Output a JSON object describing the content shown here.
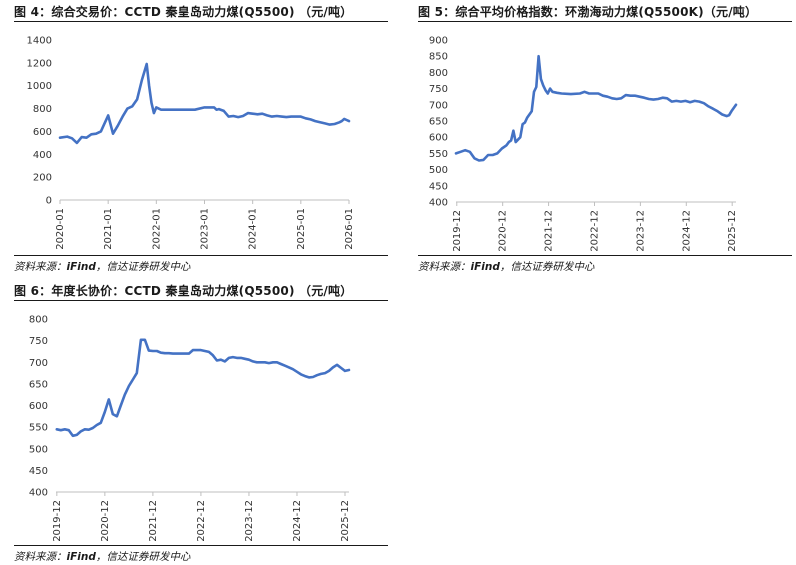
{
  "source": {
    "prefix": "资料来源：",
    "brand": "iFind",
    "suffix": "，信达证券研发中心"
  },
  "charts": [
    {
      "label": "图 4：综合交易价：CCTD 秦皇岛动力煤(Q5500)  （元/吨）",
      "color": "#4472C4",
      "chart_data": {
        "type": "line",
        "title": "图 4：综合交易价：CCTD 秦皇岛动力煤(Q5500)  （元/吨）",
        "xlabel": "",
        "ylabel": "",
        "ylim": [
          0,
          1400
        ],
        "yticks": [
          0,
          200,
          400,
          600,
          800,
          1000,
          1200,
          1400
        ],
        "xlim": [
          2020.0,
          2026.0
        ],
        "xticks": [
          {
            "x": 2020.0,
            "label": "2020-01"
          },
          {
            "x": 2021.0,
            "label": "2021-01"
          },
          {
            "x": 2022.0,
            "label": "2022-01"
          },
          {
            "x": 2023.0,
            "label": "2023-01"
          },
          {
            "x": 2024.0,
            "label": "2024-01"
          },
          {
            "x": 2025.0,
            "label": "2025-01"
          },
          {
            "x": 2026.0,
            "label": "2026-01"
          }
        ],
        "grid": false,
        "legend": "none",
        "series": [
          {
            "x": [
              2020.0,
              2020.15,
              2020.25,
              2020.35,
              2020.45,
              2020.55,
              2020.65,
              2020.75,
              2020.85,
              2021.0,
              2021.1,
              2021.2,
              2021.3,
              2021.4,
              2021.5,
              2021.6,
              2021.7,
              2021.75,
              2021.8,
              2021.85,
              2021.9,
              2021.95,
              2022.0,
              2022.05,
              2022.1,
              2022.2,
              2022.4,
              2022.6,
              2022.8,
              2023.0,
              2023.1,
              2023.2,
              2023.25,
              2023.3,
              2023.4,
              2023.5,
              2023.6,
              2023.7,
              2023.8,
              2023.9,
              2024.0,
              2024.1,
              2024.2,
              2024.3,
              2024.4,
              2024.5,
              2024.6,
              2024.7,
              2024.8,
              2024.9,
              2025.0,
              2025.1,
              2025.2,
              2025.3,
              2025.4,
              2025.5,
              2025.6,
              2025.7,
              2025.8,
              2025.85,
              2025.9,
              2025.95,
              2026.0
            ],
            "y": [
              545,
              555,
              540,
              500,
              550,
              545,
              575,
              580,
              600,
              740,
              580,
              650,
              730,
              800,
              820,
              880,
              1050,
              1120,
              1190,
              1000,
              850,
              760,
              810,
              800,
              790,
              790,
              790,
              790,
              790,
              810,
              810,
              810,
              790,
              795,
              780,
              730,
              735,
              725,
              735,
              760,
              755,
              750,
              755,
              740,
              730,
              735,
              730,
              725,
              730,
              730,
              730,
              715,
              705,
              690,
              680,
              670,
              660,
              665,
              680,
              690,
              710,
              700,
              690
            ]
          }
        ]
      }
    },
    {
      "label": "图 5：综合平均价格指数：环渤海动力煤(Q5500K)（元/吨）",
      "color": "#4472C4",
      "chart_data": {
        "type": "line",
        "title": "图 5：综合平均价格指数：环渤海动力煤(Q5500K)（元/吨）",
        "xlabel": "",
        "ylabel": "",
        "ylim": [
          400,
          900
        ],
        "yticks": [
          400,
          450,
          500,
          550,
          600,
          650,
          700,
          750,
          800,
          850,
          900
        ],
        "xlim": [
          2019.9,
          2026.0
        ],
        "xticks": [
          {
            "x": 2019.917,
            "label": "2019-12"
          },
          {
            "x": 2020.917,
            "label": "2020-12"
          },
          {
            "x": 2021.917,
            "label": "2021-12"
          },
          {
            "x": 2022.917,
            "label": "2022-12"
          },
          {
            "x": 2023.917,
            "label": "2023-12"
          },
          {
            "x": 2024.917,
            "label": "2024-12"
          },
          {
            "x": 2025.917,
            "label": "2025-12"
          }
        ],
        "grid": false,
        "legend": "none",
        "series": [
          {
            "x": [
              2019.9,
              2020.0,
              2020.1,
              2020.2,
              2020.3,
              2020.4,
              2020.5,
              2020.6,
              2020.7,
              2020.8,
              2020.9,
              2021.0,
              2021.05,
              2021.1,
              2021.15,
              2021.2,
              2021.3,
              2021.35,
              2021.4,
              2021.45,
              2021.5,
              2021.55,
              2021.6,
              2021.65,
              2021.7,
              2021.75,
              2021.8,
              2021.85,
              2021.9,
              2021.95,
              2022.0,
              2022.1,
              2022.2,
              2022.4,
              2022.6,
              2022.7,
              2022.8,
              2023.0,
              2023.1,
              2023.2,
              2023.3,
              2023.4,
              2023.5,
              2023.6,
              2023.7,
              2023.8,
              2023.9,
              2024.0,
              2024.1,
              2024.2,
              2024.3,
              2024.4,
              2024.5,
              2024.6,
              2024.7,
              2024.8,
              2024.9,
              2025.0,
              2025.1,
              2025.2,
              2025.3,
              2025.4,
              2025.5,
              2025.6,
              2025.7,
              2025.8,
              2025.85,
              2025.9,
              2025.95,
              2026.0
            ],
            "y": [
              550,
              555,
              560,
              555,
              535,
              528,
              530,
              545,
              545,
              550,
              565,
              575,
              585,
              590,
              620,
              585,
              600,
              640,
              645,
              660,
              670,
              680,
              740,
              755,
              850,
              780,
              760,
              745,
              735,
              750,
              740,
              737,
              735,
              733,
              735,
              740,
              735,
              735,
              728,
              725,
              720,
              718,
              720,
              730,
              728,
              728,
              725,
              722,
              718,
              716,
              718,
              722,
              720,
              710,
              712,
              710,
              712,
              708,
              712,
              710,
              705,
              695,
              688,
              680,
              670,
              665,
              668,
              680,
              690,
              700
            ]
          }
        ]
      }
    },
    {
      "label": "图 6：年度长协价：CCTD 秦皇岛动力煤(Q5500)  （元/吨）",
      "color": "#4472C4",
      "chart_data": {
        "type": "line",
        "title": "图 6：年度长协价：CCTD 秦皇岛动力煤(Q5500)  （元/吨）",
        "xlabel": "",
        "ylabel": "",
        "ylim": [
          400,
          800
        ],
        "yticks": [
          400,
          450,
          500,
          550,
          600,
          650,
          700,
          750,
          800
        ],
        "xlim": [
          2019.9,
          2026.0
        ],
        "xticks": [
          {
            "x": 2019.917,
            "label": "2019-12"
          },
          {
            "x": 2020.917,
            "label": "2020-12"
          },
          {
            "x": 2021.917,
            "label": "2021-12"
          },
          {
            "x": 2022.917,
            "label": "2022-12"
          },
          {
            "x": 2023.917,
            "label": "2023-12"
          },
          {
            "x": 2024.917,
            "label": "2024-12"
          },
          {
            "x": 2025.917,
            "label": "2025-12"
          }
        ],
        "grid": false,
        "legend": "none",
        "series": [
          {
            "x": [
              2019.917,
              2020.0,
              2020.083,
              2020.167,
              2020.25,
              2020.333,
              2020.417,
              2020.5,
              2020.583,
              2020.667,
              2020.75,
              2020.833,
              2020.917,
              2021.0,
              2021.083,
              2021.167,
              2021.25,
              2021.333,
              2021.417,
              2021.5,
              2021.583,
              2021.667,
              2021.75,
              2021.833,
              2021.917,
              2022.0,
              2022.083,
              2022.167,
              2022.25,
              2022.333,
              2022.417,
              2022.5,
              2022.583,
              2022.667,
              2022.75,
              2022.833,
              2022.917,
              2023.0,
              2023.083,
              2023.167,
              2023.25,
              2023.333,
              2023.417,
              2023.5,
              2023.583,
              2023.667,
              2023.75,
              2023.833,
              2023.917,
              2024.0,
              2024.083,
              2024.167,
              2024.25,
              2024.333,
              2024.417,
              2024.5,
              2024.583,
              2024.667,
              2024.75,
              2024.833,
              2024.917,
              2025.0,
              2025.083,
              2025.167,
              2025.25,
              2025.333,
              2025.417,
              2025.5,
              2025.583,
              2025.667,
              2025.75,
              2025.833,
              2025.917,
              2026.0
            ],
            "y": [
              545,
              543,
              545,
              543,
              530,
              532,
              540,
              545,
              544,
              548,
              555,
              560,
              585,
              614,
              580,
              575,
              600,
              625,
              645,
              660,
              675,
              752,
              752,
              727,
              726,
              726,
              722,
              721,
              721,
              720,
              720,
              720,
              720,
              720,
              728,
              728,
              728,
              726,
              724,
              716,
              704,
              706,
              702,
              710,
              712,
              710,
              710,
              708,
              706,
              702,
              700,
              700,
              700,
              698,
              700,
              700,
              696,
              692,
              688,
              684,
              678,
              672,
              668,
              665,
              666,
              670,
              673,
              675,
              680,
              688,
              694,
              687,
              680,
              682
            ]
          }
        ]
      }
    }
  ]
}
